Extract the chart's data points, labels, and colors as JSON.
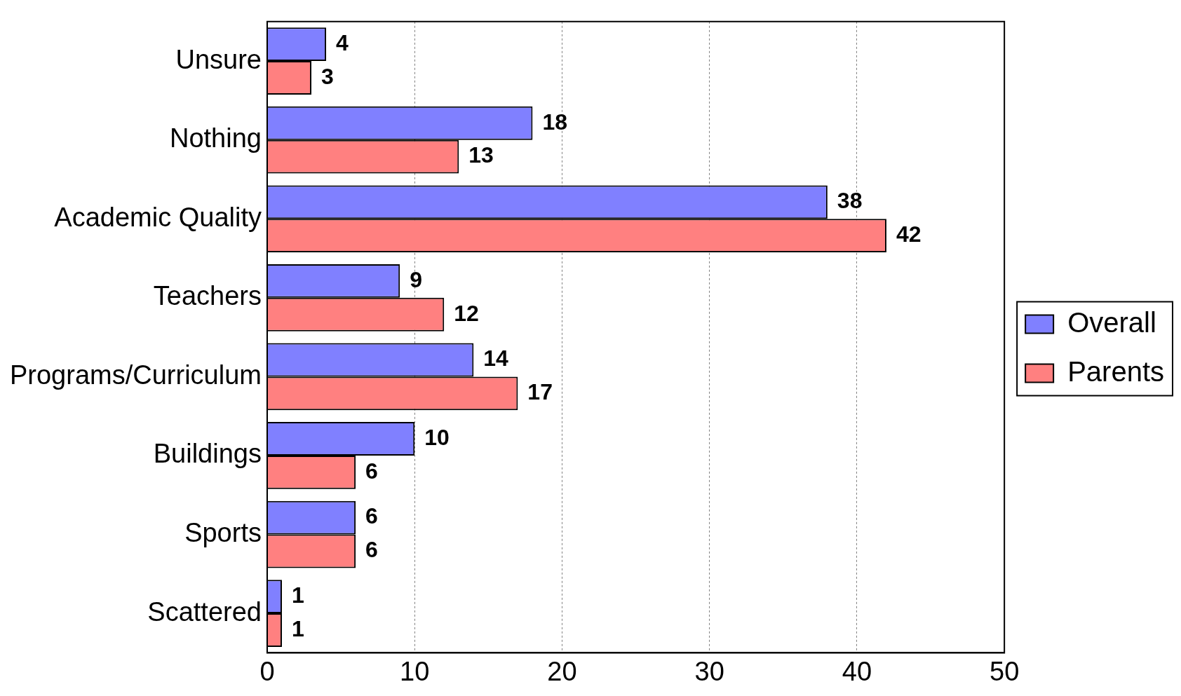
{
  "chart_data": {
    "type": "bar",
    "orientation": "horizontal",
    "categories": [
      "Unsure",
      "Nothing",
      "Academic Quality",
      "Teachers",
      "Programs/Curriculum",
      "Buildings",
      "Sports",
      "Scattered"
    ],
    "series": [
      {
        "name": "Overall",
        "color": "#8080ff",
        "values": [
          4,
          18,
          38,
          9,
          14,
          10,
          6,
          1
        ]
      },
      {
        "name": "Parents",
        "color": "#ff8080",
        "values": [
          3,
          13,
          42,
          12,
          17,
          6,
          6,
          1
        ]
      }
    ],
    "xlim": [
      0,
      50
    ],
    "xticks": [
      0,
      10,
      20,
      30,
      40,
      50
    ],
    "grid": "x",
    "legend": "right",
    "data_labels": true
  }
}
